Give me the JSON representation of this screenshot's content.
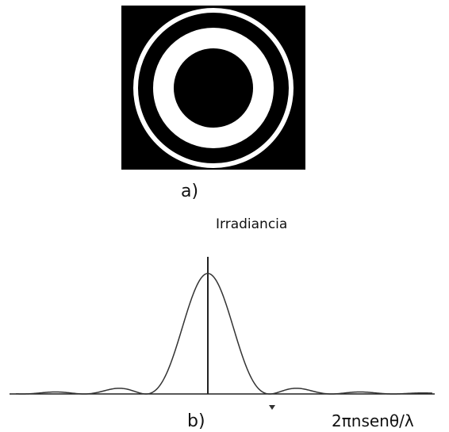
{
  "panel_a": {
    "label": "a)"
  },
  "panel_b": {
    "label": "b)",
    "y_axis_label": "Irradiancia",
    "x_axis_label": "2πnsenθ/λ"
  }
}
